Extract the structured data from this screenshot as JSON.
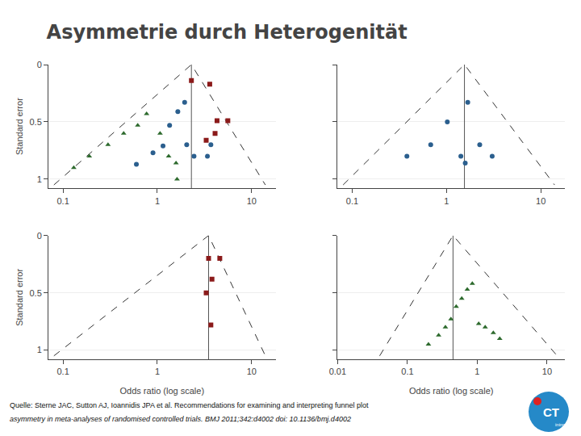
{
  "title": "Asymmetrie durch Heterogenität",
  "annotations": [
    "Quelle: Sterne JAC, Sutton AJ, Ioannidis JPA et al. Recommendations for examining and interpreting funnel plot",
    "asymmetry in meta-analyses of randomised controlled trials. BMJ 2011;342:d4002 doi: 10.1136/bmj.d4002",
    "CT",
    "ining"
  ],
  "chart_data": [
    {
      "type": "scatter",
      "log": "x",
      "grid": "y",
      "ylabel": "Standard error",
      "xlim": [
        0.07,
        18
      ],
      "ylim": [
        1.08,
        0.0
      ],
      "xticks": [
        0.1,
        1,
        10
      ],
      "yticks": [
        0,
        0.5,
        1
      ],
      "series": [
        {
          "type": "line",
          "line_style": "dashed",
          "color": "#333333",
          "x": [
            0.08,
            2.3,
            14
          ],
          "values": [
            1.05,
            0.0,
            1.05
          ]
        },
        {
          "type": "line",
          "line_style": "solid",
          "color": "#555555",
          "x": [
            2.3,
            2.3
          ],
          "values": [
            1.08,
            0.0
          ]
        },
        {
          "color": "#2b5f8e",
          "marker": "circle",
          "x": [
            0.6,
            0.9,
            1.15,
            1.35,
            1.65,
            1.95,
            2.05,
            2.45,
            3.4,
            3.7
          ],
          "values": [
            0.87,
            0.77,
            0.71,
            0.53,
            0.41,
            0.33,
            0.7,
            0.8,
            0.8,
            0.7
          ]
        },
        {
          "color": "#8b1a1a",
          "marker": "square",
          "x": [
            2.3,
            3.6,
            4.3,
            5.6,
            4.1,
            3.3
          ],
          "values": [
            0.14,
            0.17,
            0.49,
            0.49,
            0.6,
            0.66
          ]
        },
        {
          "color": "#2d6a2d",
          "marker": "triangle",
          "x": [
            0.13,
            0.19,
            0.3,
            0.44,
            0.62,
            0.77,
            1.07,
            1.32,
            1.58,
            1.62
          ],
          "values": [
            0.9,
            0.8,
            0.7,
            0.6,
            0.53,
            0.43,
            0.6,
            0.8,
            0.86,
            1.0
          ]
        }
      ]
    },
    {
      "type": "scatter",
      "log": "x",
      "grid": "y",
      "tick_labels": "x",
      "xlim": [
        0.07,
        18
      ],
      "ylim": [
        1.08,
        0.0
      ],
      "xticks": [
        0.1,
        1,
        10
      ],
      "yticks": [
        0,
        0.5,
        1
      ],
      "series": [
        {
          "type": "line",
          "line_style": "dashed",
          "color": "#333333",
          "x": [
            0.08,
            1.55,
            14
          ],
          "values": [
            1.05,
            0.0,
            1.05
          ]
        },
        {
          "type": "line",
          "line_style": "solid",
          "color": "#555555",
          "x": [
            1.55,
            1.55
          ],
          "values": [
            1.08,
            0.0
          ]
        },
        {
          "color": "#2b5f8e",
          "marker": "circle",
          "x": [
            0.38,
            0.68,
            1.02,
            1.42,
            1.58,
            1.68,
            2.25,
            3.05
          ],
          "values": [
            0.8,
            0.7,
            0.5,
            0.8,
            0.86,
            0.33,
            0.7,
            0.8
          ]
        }
      ]
    },
    {
      "type": "scatter",
      "log": "x",
      "grid": "y",
      "xlabel": "Odds ratio (log scale)",
      "ylabel": "Standard error",
      "xlim": [
        0.07,
        18
      ],
      "ylim": [
        1.08,
        0.0
      ],
      "xticks": [
        0.1,
        1,
        10
      ],
      "yticks": [
        0,
        0.5,
        1
      ],
      "series": [
        {
          "type": "line",
          "line_style": "dashed",
          "color": "#333333",
          "x": [
            0.08,
            3.5,
            14
          ],
          "values": [
            1.05,
            0.0,
            1.05
          ]
        },
        {
          "type": "line",
          "line_style": "solid",
          "color": "#555555",
          "x": [
            3.5,
            3.5
          ],
          "values": [
            1.08,
            0.0
          ]
        },
        {
          "color": "#8b1a1a",
          "marker": "square",
          "x": [
            3.5,
            4.6,
            3.8,
            3.3,
            3.7
          ],
          "values": [
            0.2,
            0.2,
            0.38,
            0.5,
            0.78
          ]
        }
      ]
    },
    {
      "type": "scatter",
      "log": "x",
      "grid": "y",
      "tick_labels": "x",
      "xlabel": "Odds ratio (log scale)",
      "xlim": [
        0.01,
        18
      ],
      "ylim": [
        1.08,
        0.0
      ],
      "xticks": [
        0.01,
        0.1,
        1,
        10
      ],
      "yticks": [
        0,
        0.5,
        1
      ],
      "series": [
        {
          "type": "line",
          "line_style": "dashed",
          "color": "#333333",
          "x": [
            0.04,
            0.45,
            14
          ],
          "values": [
            1.05,
            0.0,
            1.05
          ]
        },
        {
          "type": "line",
          "line_style": "solid",
          "color": "#555555",
          "x": [
            0.45,
            0.45
          ],
          "values": [
            1.08,
            0.0
          ]
        },
        {
          "color": "#2d6a2d",
          "marker": "triangle",
          "x": [
            0.2,
            0.28,
            0.35,
            0.42,
            0.5,
            0.6,
            0.72,
            0.85,
            1.05,
            1.3,
            1.7,
            2.1
          ],
          "values": [
            0.95,
            0.87,
            0.8,
            0.73,
            0.62,
            0.55,
            0.47,
            0.42,
            0.77,
            0.8,
            0.85,
            0.9
          ]
        }
      ]
    }
  ]
}
